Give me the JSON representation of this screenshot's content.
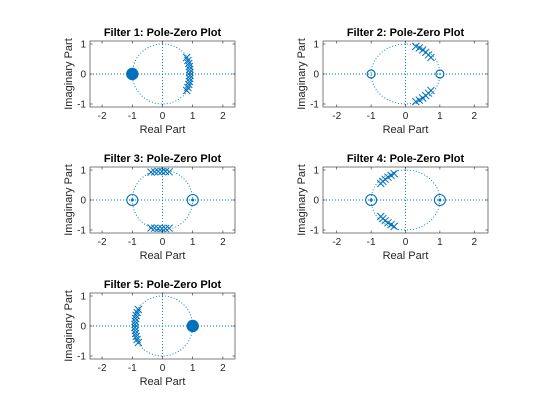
{
  "figure": {
    "background": "#ffffff"
  },
  "chart_data": [
    {
      "type": "scatter",
      "title": "Filter 1: Pole-Zero Plot",
      "xlabel": "Real Part",
      "ylabel": "Imaginary Part",
      "xlim": [
        -2.4,
        2.4
      ],
      "ylim": [
        -1.1,
        1.1
      ],
      "xticks": [
        -2,
        -1,
        0,
        1,
        2
      ],
      "yticks": [
        -1,
        0,
        1
      ],
      "color": "#0072BD",
      "unit_circle": true,
      "zeros": [
        {
          "re": -1.0,
          "im": 0.0,
          "multiplicity": 8
        }
      ],
      "poles": [
        {
          "re": 0.8,
          "im": 0.55
        },
        {
          "re": 0.84,
          "im": 0.45
        },
        {
          "re": 0.87,
          "im": 0.35
        },
        {
          "re": 0.89,
          "im": 0.25
        },
        {
          "re": 0.9,
          "im": 0.15
        },
        {
          "re": 0.91,
          "im": 0.05
        },
        {
          "re": 0.91,
          "im": -0.05
        },
        {
          "re": 0.9,
          "im": -0.15
        },
        {
          "re": 0.89,
          "im": -0.25
        },
        {
          "re": 0.87,
          "im": -0.35
        },
        {
          "re": 0.84,
          "im": -0.45
        },
        {
          "re": 0.8,
          "im": -0.55
        }
      ]
    },
    {
      "type": "scatter",
      "title": "Filter 2: Pole-Zero Plot",
      "xlabel": "Real Part",
      "ylabel": "Imaginary Part",
      "xlim": [
        -2.4,
        2.4
      ],
      "ylim": [
        -1.1,
        1.1
      ],
      "xticks": [
        -2,
        -1,
        0,
        1,
        2
      ],
      "yticks": [
        -1,
        0,
        1
      ],
      "color": "#0072BD",
      "unit_circle": true,
      "zeros": [
        {
          "re": -1.0,
          "im": 0.0,
          "multiplicity": 1
        },
        {
          "re": 1.0,
          "im": 0.0,
          "multiplicity": 1
        }
      ],
      "poles": [
        {
          "re": 0.3,
          "im": 0.92
        },
        {
          "re": 0.4,
          "im": 0.87
        },
        {
          "re": 0.5,
          "im": 0.8
        },
        {
          "re": 0.59,
          "im": 0.72
        },
        {
          "re": 0.67,
          "im": 0.64
        },
        {
          "re": 0.74,
          "im": 0.55
        },
        {
          "re": 0.3,
          "im": -0.92
        },
        {
          "re": 0.4,
          "im": -0.87
        },
        {
          "re": 0.5,
          "im": -0.8
        },
        {
          "re": 0.59,
          "im": -0.72
        },
        {
          "re": 0.67,
          "im": -0.64
        },
        {
          "re": 0.74,
          "im": -0.55
        }
      ]
    },
    {
      "type": "scatter",
      "title": "Filter 3: Pole-Zero Plot",
      "xlabel": "Real Part",
      "ylabel": "Imaginary Part",
      "xlim": [
        -2.4,
        2.4
      ],
      "ylim": [
        -1.1,
        1.1
      ],
      "xticks": [
        -2,
        -1,
        0,
        1,
        2
      ],
      "yticks": [
        -1,
        0,
        1
      ],
      "color": "#0072BD",
      "unit_circle": true,
      "zeros": [
        {
          "re": -1.0,
          "im": 0.0,
          "multiplicity": 2
        },
        {
          "re": 1.0,
          "im": 0.0,
          "multiplicity": 2
        }
      ],
      "poles": [
        {
          "re": -0.38,
          "im": 0.93
        },
        {
          "re": -0.26,
          "im": 0.94
        },
        {
          "re": -0.14,
          "im": 0.95
        },
        {
          "re": -0.02,
          "im": 0.95
        },
        {
          "re": 0.1,
          "im": 0.95
        },
        {
          "re": 0.22,
          "im": 0.94
        },
        {
          "re": -0.38,
          "im": -0.93
        },
        {
          "re": -0.26,
          "im": -0.94
        },
        {
          "re": -0.14,
          "im": -0.95
        },
        {
          "re": -0.02,
          "im": -0.95
        },
        {
          "re": 0.1,
          "im": -0.95
        },
        {
          "re": 0.22,
          "im": -0.94
        }
      ]
    },
    {
      "type": "scatter",
      "title": "Filter 4: Pole-Zero Plot",
      "xlabel": "Real Part",
      "ylabel": "Imaginary Part",
      "xlim": [
        -2.4,
        2.4
      ],
      "ylim": [
        -1.1,
        1.1
      ],
      "xticks": [
        -2,
        -1,
        0,
        1,
        2
      ],
      "yticks": [
        -1,
        0,
        1
      ],
      "color": "#0072BD",
      "unit_circle": true,
      "zeros": [
        {
          "re": -1.0,
          "im": 0.0,
          "multiplicity": 2
        },
        {
          "re": 1.0,
          "im": 0.0,
          "multiplicity": 2
        }
      ],
      "poles": [
        {
          "re": -0.33,
          "im": 0.88
        },
        {
          "re": -0.42,
          "im": 0.82
        },
        {
          "re": -0.51,
          "im": 0.76
        },
        {
          "re": -0.59,
          "im": 0.69
        },
        {
          "re": -0.66,
          "im": 0.62
        },
        {
          "re": -0.72,
          "im": 0.55
        },
        {
          "re": -0.33,
          "im": -0.88
        },
        {
          "re": -0.42,
          "im": -0.82
        },
        {
          "re": -0.51,
          "im": -0.76
        },
        {
          "re": -0.59,
          "im": -0.69
        },
        {
          "re": -0.66,
          "im": -0.62
        },
        {
          "re": -0.72,
          "im": -0.55
        }
      ]
    },
    {
      "type": "scatter",
      "title": "Filter 5: Pole-Zero Plot",
      "xlabel": "Real Part",
      "ylabel": "Imaginary Part",
      "xlim": [
        -2.4,
        2.4
      ],
      "ylim": [
        -1.1,
        1.1
      ],
      "xticks": [
        -2,
        -1,
        0,
        1,
        2
      ],
      "yticks": [
        -1,
        0,
        1
      ],
      "color": "#0072BD",
      "unit_circle": true,
      "zeros": [
        {
          "re": 1.0,
          "im": 0.0,
          "multiplicity": 8
        }
      ],
      "poles": [
        {
          "re": -0.8,
          "im": 0.55
        },
        {
          "re": -0.84,
          "im": 0.45
        },
        {
          "re": -0.87,
          "im": 0.35
        },
        {
          "re": -0.89,
          "im": 0.25
        },
        {
          "re": -0.9,
          "im": 0.15
        },
        {
          "re": -0.91,
          "im": 0.05
        },
        {
          "re": -0.91,
          "im": -0.05
        },
        {
          "re": -0.9,
          "im": -0.15
        },
        {
          "re": -0.89,
          "im": -0.25
        },
        {
          "re": -0.87,
          "im": -0.35
        },
        {
          "re": -0.84,
          "im": -0.45
        },
        {
          "re": -0.8,
          "im": -0.55
        }
      ]
    }
  ]
}
